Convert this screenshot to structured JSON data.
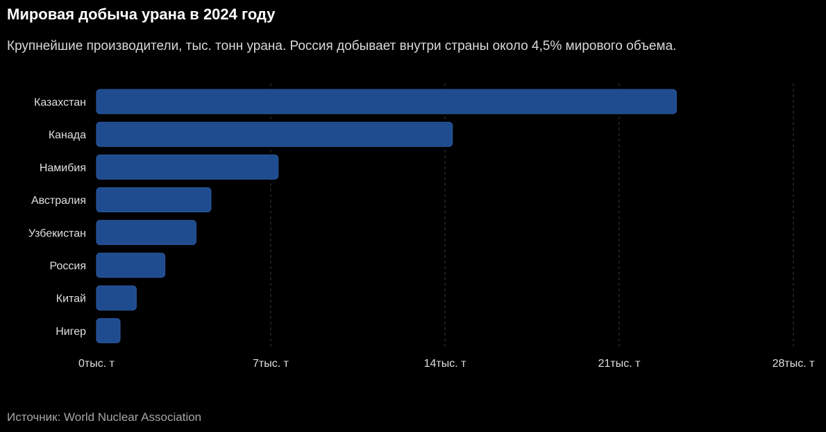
{
  "header": {
    "title": "Мировая добыча урана в 2024 году",
    "subtitle": "Крупнейшие производители, тыс. тонн урана. Россия добывает внутри страны около 4,5% мирового объема."
  },
  "footer": {
    "source": "Источник: World Nuclear Association"
  },
  "colors": {
    "background": "#000000",
    "bar_fill": "#1f4b8f",
    "bar_stroke": "#2e5aa3",
    "grid": "#3a3a3a"
  },
  "chart_data": {
    "type": "bar",
    "orientation": "horizontal",
    "categories": [
      "Казахстан",
      "Канада",
      "Намибия",
      "Австралия",
      "Узбекистан",
      "Россия",
      "Китай",
      "Нигер"
    ],
    "values": [
      23.3,
      14.3,
      7.3,
      4.6,
      4.0,
      2.75,
      1.6,
      0.95
    ],
    "xlim": [
      0,
      28
    ],
    "xticks": [
      0,
      7,
      14,
      21,
      28
    ],
    "xtick_labels": [
      "0тыс. т",
      "7тыс. т",
      "14тыс. т",
      "21тыс. т",
      "28тыс. т"
    ],
    "grid": "vertical dashed",
    "legend": "none"
  }
}
